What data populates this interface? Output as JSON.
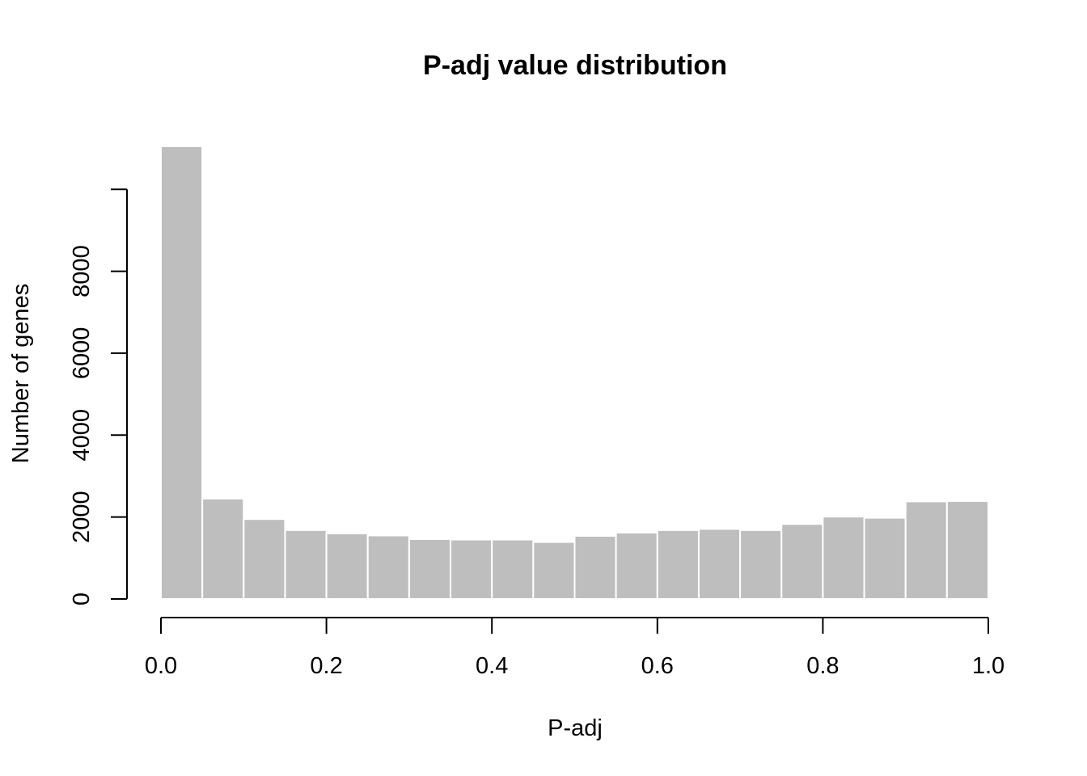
{
  "chart_data": {
    "type": "bar",
    "title": "P-adj value distribution",
    "xlabel": "P-adj",
    "ylabel": "Number of genes",
    "bin_edges": [
      0.0,
      0.05,
      0.1,
      0.15,
      0.2,
      0.25,
      0.3,
      0.35,
      0.4,
      0.45,
      0.5,
      0.55,
      0.6,
      0.65,
      0.7,
      0.75,
      0.8,
      0.85,
      0.9,
      0.95,
      1.0
    ],
    "values": [
      11050,
      2450,
      1950,
      1680,
      1600,
      1550,
      1460,
      1450,
      1450,
      1390,
      1540,
      1620,
      1680,
      1710,
      1680,
      1830,
      2010,
      1980,
      2380,
      2390
    ],
    "xlim": [
      0,
      1
    ],
    "ylim": [
      0,
      11050
    ],
    "x_ticks": [
      {
        "value": 0.0,
        "label": "0.0"
      },
      {
        "value": 0.2,
        "label": "0.2"
      },
      {
        "value": 0.4,
        "label": "0.4"
      },
      {
        "value": 0.6,
        "label": "0.6"
      },
      {
        "value": 0.8,
        "label": "0.8"
      },
      {
        "value": 1.0,
        "label": "1.0"
      }
    ],
    "y_ticks": [
      {
        "value": 0,
        "label": "0"
      },
      {
        "value": 2000,
        "label": "2000"
      },
      {
        "value": 4000,
        "label": "4000"
      },
      {
        "value": 6000,
        "label": "6000"
      },
      {
        "value": 8000,
        "label": "8000"
      },
      {
        "value": 10000,
        "label": ""
      }
    ],
    "bar_color": "#bebebe",
    "bar_border_color": "#ffffff",
    "grid": false
  }
}
